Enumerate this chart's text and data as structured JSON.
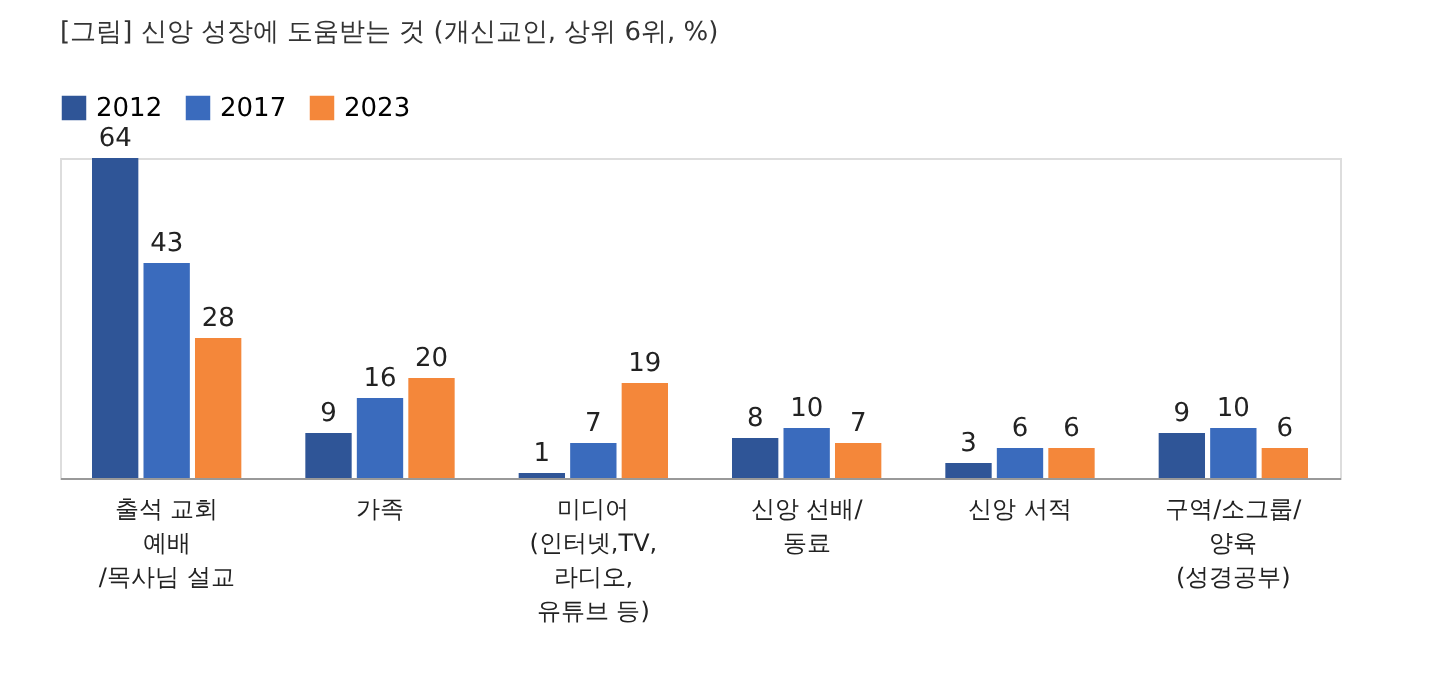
{
  "chart_data": {
    "type": "bar",
    "title": "[그림] 신앙 성장에 도움받는 것 (개신교인, 상위 6위, %)",
    "categories": [
      "출석 교회\n예배\n/목사님 설교",
      "가족",
      "미디어\n(인터넷,TV,\n라디오,\n유튜브 등)",
      "신앙 선배/\n동료",
      "신앙 서적",
      "구역/소그룹/\n양육\n(성경공부)"
    ],
    "series": [
      {
        "name": "2012",
        "color": "#2f5597",
        "values": [
          64,
          9,
          1,
          8,
          3,
          9
        ]
      },
      {
        "name": "2017",
        "color": "#3a6bbd",
        "values": [
          43,
          16,
          7,
          10,
          6,
          10
        ]
      },
      {
        "name": "2023",
        "color": "#f4873a",
        "values": [
          28,
          20,
          19,
          7,
          6,
          6
        ]
      }
    ],
    "data_labels": true,
    "legend": "top",
    "grid": false
  }
}
